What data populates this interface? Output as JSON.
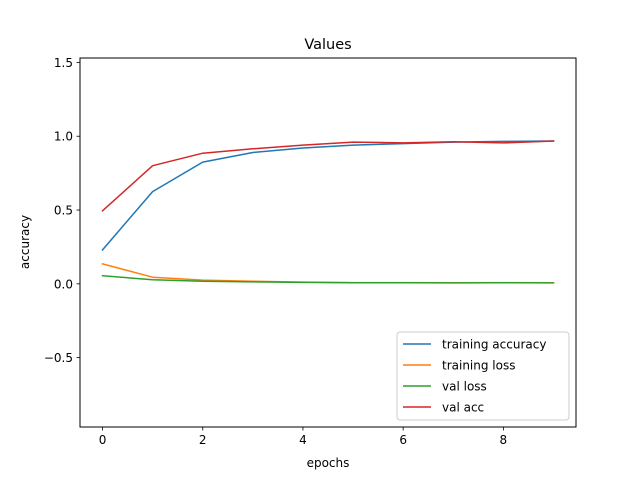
{
  "chart_data": {
    "type": "line",
    "title": "Values",
    "xlabel": "epochs",
    "ylabel": "accuracy",
    "xlim": [
      -0.45,
      9.45
    ],
    "ylim": [
      -0.97,
      1.53
    ],
    "xticks": [
      0,
      2,
      4,
      6,
      8
    ],
    "yticks": [
      -0.5,
      0.0,
      0.5,
      1.0,
      1.5
    ],
    "xtick_labels": [
      "0",
      "2",
      "4",
      "6",
      "8"
    ],
    "ytick_labels": [
      "−0.5",
      "0.0",
      "0.5",
      "1.0",
      "1.5"
    ],
    "grid": false,
    "legend_position": "lower-right",
    "x": [
      0,
      1,
      2,
      3,
      4,
      5,
      6,
      7,
      8,
      9
    ],
    "series": [
      {
        "name": "training accuracy",
        "color": "#1f77b4",
        "values": [
          0.23,
          0.625,
          0.825,
          0.89,
          0.92,
          0.94,
          0.95,
          0.96,
          0.965,
          0.968
        ]
      },
      {
        "name": "training loss",
        "color": "#ff7f0e",
        "values": [
          0.135,
          0.045,
          0.025,
          0.018,
          0.012,
          0.008,
          0.008,
          0.007,
          0.008,
          0.007
        ]
      },
      {
        "name": "val loss",
        "color": "#2ca02c",
        "values": [
          0.055,
          0.027,
          0.017,
          0.013,
          0.01,
          0.007,
          0.007,
          0.006,
          0.007,
          0.006
        ]
      },
      {
        "name": "val acc",
        "color": "#d62728",
        "values": [
          0.495,
          0.8,
          0.885,
          0.915,
          0.94,
          0.96,
          0.955,
          0.962,
          0.955,
          0.968
        ]
      }
    ]
  }
}
